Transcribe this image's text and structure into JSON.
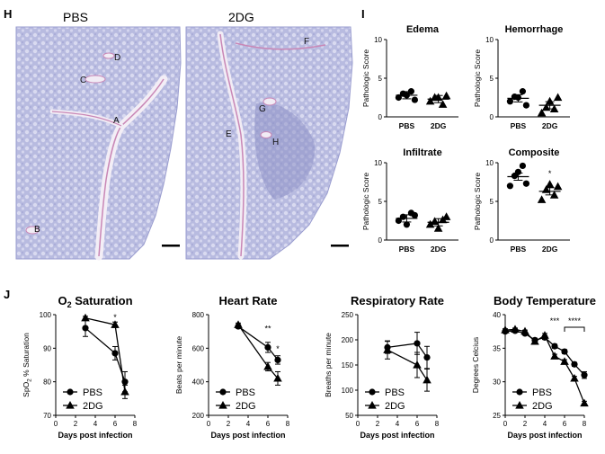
{
  "panels": {
    "H": {
      "letter": "H",
      "conditions": [
        "PBS",
        "2DG"
      ],
      "region_labels_pbs": [
        "A",
        "B",
        "C",
        "D"
      ],
      "region_labels_2dg": [
        "E",
        "F",
        "G",
        "H"
      ],
      "colors": {
        "tissue": "#b3b6dc",
        "tissue_dark": "#8e91c6",
        "vessel": "#c987b6",
        "background": "#ffffff"
      }
    },
    "I": {
      "letter": "I",
      "ylabel": "Pathologic Score",
      "yticks": [
        0,
        5,
        10
      ],
      "categories": [
        "PBS",
        "2DG"
      ]
    },
    "J": {
      "letter": "J",
      "legend": [
        "PBS",
        "2DG"
      ],
      "xlabel": "Days post infection"
    }
  },
  "chart_data": [
    {
      "type": "scatter",
      "title": "Edema",
      "ylabel": "Pathologic Score",
      "categories": [
        "PBS",
        "2DG"
      ],
      "ylim": [
        0,
        10
      ],
      "series": [
        {
          "name": "PBS",
          "values": [
            2.5,
            3.0,
            2.8,
            3.3,
            2.2
          ],
          "mean": 2.8
        },
        {
          "name": "2DG",
          "values": [
            2.0,
            2.5,
            2.5,
            1.6,
            2.7
          ],
          "mean": 2.3
        }
      ]
    },
    {
      "type": "scatter",
      "title": "Hemorrhage",
      "ylabel": "Pathologic Score",
      "categories": [
        "PBS",
        "2DG"
      ],
      "ylim": [
        0,
        10
      ],
      "series": [
        {
          "name": "PBS",
          "values": [
            2.0,
            2.6,
            2.5,
            3.3,
            1.5
          ],
          "mean": 2.4
        },
        {
          "name": "2DG",
          "values": [
            0.5,
            1.2,
            2.0,
            1.0,
            2.5
          ],
          "mean": 1.5
        }
      ]
    },
    {
      "type": "scatter",
      "title": "Infiltrate",
      "ylabel": "Pathologic Score",
      "categories": [
        "PBS",
        "2DG"
      ],
      "ylim": [
        0,
        10
      ],
      "series": [
        {
          "name": "PBS",
          "values": [
            2.5,
            3.0,
            2.0,
            3.5,
            3.2
          ],
          "mean": 2.8
        },
        {
          "name": "2DG",
          "values": [
            2.0,
            2.4,
            1.5,
            2.6,
            3.0
          ],
          "mean": 2.3
        }
      ]
    },
    {
      "type": "scatter",
      "title": "Composite",
      "ylabel": "Pathologic Score",
      "categories": [
        "PBS",
        "2DG"
      ],
      "ylim": [
        0,
        10
      ],
      "annotation": "*",
      "series": [
        {
          "name": "PBS",
          "values": [
            7.0,
            8.3,
            8.8,
            9.6,
            7.3
          ],
          "mean": 8.2
        },
        {
          "name": "2DG",
          "values": [
            5.2,
            6.5,
            7.2,
            5.8,
            6.9
          ],
          "mean": 6.3
        }
      ]
    },
    {
      "type": "line",
      "title": "O2 Saturation",
      "ylabel": "SpO2 % Saturation",
      "xlabel": "Days post infection",
      "xlim": [
        0,
        8
      ],
      "ylim": [
        70,
        100
      ],
      "xticks": [
        0,
        2,
        4,
        6,
        8
      ],
      "yticks": [
        70,
        80,
        90,
        100
      ],
      "annotations": [
        {
          "x": 6,
          "text": "*"
        }
      ],
      "series": [
        {
          "name": "PBS",
          "marker": "circle",
          "x": [
            3,
            6,
            7
          ],
          "y": [
            96,
            88.5,
            80
          ],
          "err": [
            2.5,
            2.0,
            3.0
          ]
        },
        {
          "name": "2DG",
          "marker": "triangle",
          "x": [
            3,
            6,
            7
          ],
          "y": [
            99,
            97,
            77
          ],
          "err": [
            0.5,
            0.8,
            2.0
          ]
        }
      ]
    },
    {
      "type": "line",
      "title": "Heart Rate",
      "ylabel": "Beats per minute",
      "xlabel": "Days post infection",
      "xlim": [
        0,
        8
      ],
      "ylim": [
        200,
        800
      ],
      "xticks": [
        0,
        2,
        4,
        6,
        8
      ],
      "yticks": [
        200,
        400,
        600,
        800
      ],
      "annotations": [
        {
          "x": 6,
          "text": "**"
        },
        {
          "x": 7,
          "text": "*"
        }
      ],
      "series": [
        {
          "name": "PBS",
          "marker": "circle",
          "x": [
            3,
            6,
            7
          ],
          "y": [
            730,
            605,
            530
          ],
          "err": [
            10,
            30,
            25
          ]
        },
        {
          "name": "2DG",
          "marker": "triangle",
          "x": [
            3,
            6,
            7
          ],
          "y": [
            740,
            490,
            420
          ],
          "err": [
            10,
            25,
            40
          ]
        }
      ]
    },
    {
      "type": "line",
      "title": "Respiratory Rate",
      "ylabel": "Breaths per minute",
      "xlabel": "Days post infection",
      "xlim": [
        0,
        8
      ],
      "ylim": [
        50,
        250
      ],
      "xticks": [
        0,
        2,
        4,
        6,
        8
      ],
      "yticks": [
        50,
        100,
        150,
        200,
        250
      ],
      "series": [
        {
          "name": "PBS",
          "marker": "circle",
          "x": [
            3,
            6,
            7
          ],
          "y": [
            185,
            193,
            165
          ],
          "err": [
            12,
            22,
            22
          ]
        },
        {
          "name": "2DG",
          "marker": "triangle",
          "x": [
            3,
            6,
            7
          ],
          "y": [
            180,
            150,
            120
          ],
          "err": [
            18,
            25,
            22
          ]
        }
      ]
    },
    {
      "type": "line",
      "title": "Body Temperature",
      "ylabel": "Degrees Celcius",
      "xlabel": "Days post infection",
      "xlim": [
        0,
        8
      ],
      "ylim": [
        25,
        40
      ],
      "xticks": [
        0,
        2,
        4,
        6,
        8
      ],
      "yticks": [
        25,
        30,
        35,
        40
      ],
      "annotations": [
        {
          "x": 5,
          "text": "***"
        },
        {
          "x": 7,
          "text": "****",
          "bracket": [
            6,
            8
          ]
        }
      ],
      "series": [
        {
          "name": "PBS",
          "marker": "circle",
          "x": [
            0,
            1,
            2,
            3,
            4,
            5,
            6,
            7,
            8
          ],
          "y": [
            37.5,
            37.6,
            37.2,
            36.2,
            36.6,
            35.3,
            34.5,
            32.6,
            31.0
          ],
          "err": [
            0.2,
            0.2,
            0.2,
            0.3,
            0.3,
            0.3,
            0.3,
            0.3,
            0.5
          ]
        },
        {
          "name": "2DG",
          "marker": "triangle",
          "x": [
            0,
            1,
            2,
            3,
            4,
            5,
            6,
            7,
            8
          ],
          "y": [
            37.7,
            37.8,
            37.5,
            36.0,
            36.9,
            33.8,
            33.0,
            30.5,
            26.8
          ],
          "err": [
            0.2,
            0.2,
            0.2,
            0.3,
            0.3,
            0.3,
            0.3,
            0.3,
            0.3
          ]
        }
      ]
    }
  ]
}
